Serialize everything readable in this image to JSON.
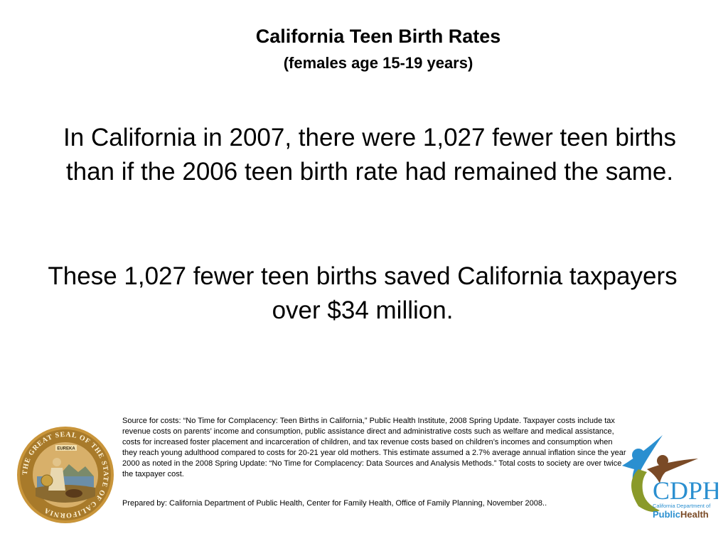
{
  "title": "California Teen Birth Rates",
  "subtitle": "(females age 15-19 years)",
  "paragraph1": "In California in 2007, there were 1,027 fewer teen births than if the 2006 teen birth rate had remained the same.",
  "paragraph2": "These 1,027 fewer teen births saved California taxpayers over $34 million.",
  "source_note": "Source for costs: “No Time for Complacency: Teen Births in California,” Public Health Institute, 2008 Spring Update. Taxpayer costs include tax revenue costs on parents’ income and consumption, public assistance direct and administrative costs such as welfare and medical assistance, costs for increased foster placement and incarceration of children, and tax revenue costs based on children’s incomes and consumption when they reach young adulthood compared to costs for 20-21 year old mothers. This estimate assumed a 2.7% average annual inflation since the year 2000 as noted in the 2008 Spring Update:  “No Time for Complacency: Data Sources and Analysis Methods.” Total costs to society are over twice the taxpayer cost.",
  "prepared_by": "Prepared by:  California Department of Public Health, Center for Family Health, Office of Family Planning, November  2008..",
  "seal": {
    "icon": "california-state-seal",
    "text": "THE GREAT SEAL OF THE STATE OF CALIFORNIA",
    "motto": "EUREKA"
  },
  "logo": {
    "icon": "cdph-logo",
    "letters": "CDPH",
    "tagline": "California Department of",
    "name_part1": "Public",
    "name_part2": "Health"
  },
  "colors": {
    "seal_gold": "#b8862b",
    "logo_blue": "#2a8fd0",
    "logo_brown": "#7a4a26",
    "logo_olive": "#8a9a2a"
  }
}
